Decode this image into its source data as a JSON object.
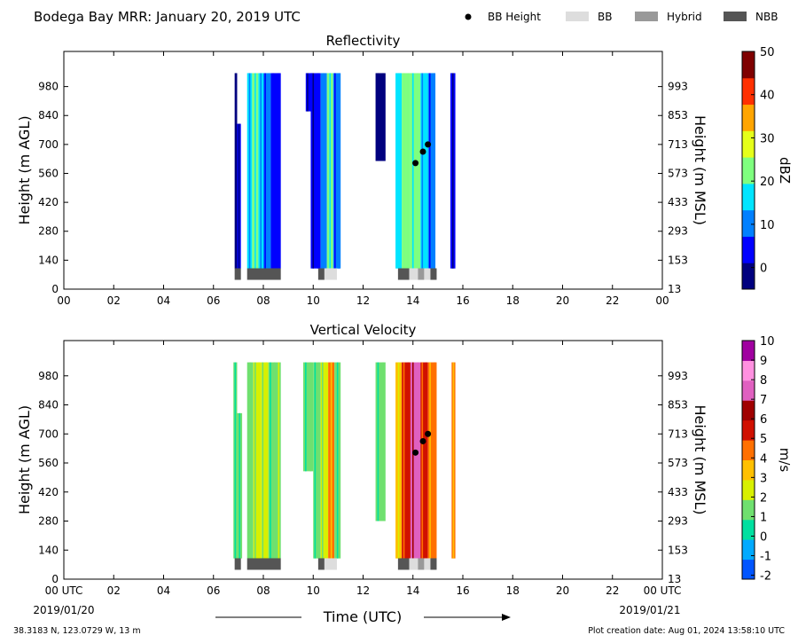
{
  "header": {
    "title": "Bodega Bay MRR:  January 20, 2019 UTC",
    "legend": [
      {
        "label": "BB Height",
        "kind": "dot",
        "color": "#000000"
      },
      {
        "label": "BB",
        "kind": "box",
        "color": "#dddddd"
      },
      {
        "label": "Hybrid",
        "kind": "box",
        "color": "#999999"
      },
      {
        "label": "NBB",
        "kind": "box",
        "color": "#555555"
      }
    ]
  },
  "footer": {
    "xlabel": "Time (UTC)",
    "start_date": "2019/01/20",
    "end_date": "2019/01/21",
    "location": "38.3183 N, 123.0729 W, 13 m",
    "created": "Plot creation date: Aug 01, 2024 13:58:10 UTC"
  },
  "chart_data": [
    {
      "type": "heatmap",
      "title": "Reflectivity",
      "ylabel": "Height (m AGL)",
      "y2label": "Height (m MSL)",
      "xlim": [
        0,
        24
      ],
      "ylim": [
        0,
        1150
      ],
      "x_ticks": [
        "00",
        "02",
        "04",
        "06",
        "08",
        "10",
        "12",
        "14",
        "16",
        "18",
        "20",
        "22",
        "00"
      ],
      "y_ticks": [
        0,
        140,
        280,
        420,
        560,
        700,
        840,
        980
      ],
      "y2_ticks": [
        13,
        153,
        293,
        433,
        573,
        713,
        853,
        993
      ],
      "colorbar": {
        "label": "dBZ",
        "range": [
          -5,
          50
        ],
        "ticks": [
          0,
          10,
          20,
          30,
          40,
          50
        ],
        "colors": [
          "#00007f",
          "#0000ff",
          "#0080ff",
          "#00e5ff",
          "#7fff7f",
          "#e5ff1a",
          "#ffa500",
          "#ff3000",
          "#7f0000"
        ]
      },
      "data_columns": [
        {
          "x": [
            6.85,
            6.95
          ],
          "ymin": 100,
          "ymax": 1045,
          "level": 0.08
        },
        {
          "x": [
            6.95,
            7.1
          ],
          "ymin": 100,
          "ymax": 800,
          "level": 0.18
        },
        {
          "x": [
            7.35,
            7.55
          ],
          "ymin": 100,
          "ymax": 1045,
          "level": 0.35
        },
        {
          "x": [
            7.55,
            7.8
          ],
          "ymin": 100,
          "ymax": 1045,
          "level": 0.5
        },
        {
          "x": [
            7.8,
            8.0
          ],
          "ymin": 100,
          "ymax": 1045,
          "level": 0.4
        },
        {
          "x": [
            8.0,
            8.3
          ],
          "ymin": 100,
          "ymax": 1045,
          "level": 0.3
        },
        {
          "x": [
            8.3,
            8.7
          ],
          "ymin": 100,
          "ymax": 1045,
          "level": 0.22
        },
        {
          "x": [
            9.7,
            10.0
          ],
          "ymin": 860,
          "ymax": 1045,
          "level": 0.12
        },
        {
          "x": [
            9.9,
            10.3
          ],
          "ymin": 100,
          "ymax": 1045,
          "level": 0.18
        },
        {
          "x": [
            10.3,
            10.55
          ],
          "ymin": 100,
          "ymax": 1045,
          "level": 0.32
        },
        {
          "x": [
            10.55,
            10.8
          ],
          "ymin": 100,
          "ymax": 1045,
          "level": 0.45
        },
        {
          "x": [
            10.8,
            11.1
          ],
          "ymin": 100,
          "ymax": 1045,
          "level": 0.25
        },
        {
          "x": [
            12.5,
            12.9
          ],
          "ymin": 620,
          "ymax": 1045,
          "level": 0.1
        },
        {
          "x": [
            13.3,
            13.55
          ],
          "ymin": 100,
          "ymax": 1045,
          "level": 0.42
        },
        {
          "x": [
            13.55,
            13.9
          ],
          "ymin": 100,
          "ymax": 1045,
          "level": 0.55
        },
        {
          "x": [
            13.9,
            14.3
          ],
          "ymin": 100,
          "ymax": 1045,
          "level": 0.5
        },
        {
          "x": [
            14.3,
            14.6
          ],
          "ymin": 100,
          "ymax": 1045,
          "level": 0.38
        },
        {
          "x": [
            14.6,
            14.9
          ],
          "ymin": 100,
          "ymax": 1045,
          "level": 0.3
        },
        {
          "x": [
            15.5,
            15.7
          ],
          "ymin": 100,
          "ymax": 1045,
          "level": 0.15
        }
      ],
      "bb_height": [
        {
          "x": 14.1,
          "y": 610
        },
        {
          "x": 14.4,
          "y": 665
        },
        {
          "x": 14.6,
          "y": 700
        }
      ],
      "bb_type": [
        {
          "x": [
            6.85,
            7.1
          ],
          "type": "NBB"
        },
        {
          "x": [
            7.35,
            8.7
          ],
          "type": "NBB"
        },
        {
          "x": [
            10.2,
            10.45
          ],
          "type": "NBB"
        },
        {
          "x": [
            10.45,
            10.95
          ],
          "type": "BB"
        },
        {
          "x": [
            13.4,
            13.85
          ],
          "type": "NBB"
        },
        {
          "x": [
            13.85,
            14.2
          ],
          "type": "BB"
        },
        {
          "x": [
            14.2,
            14.45
          ],
          "type": "Hybrid"
        },
        {
          "x": [
            14.45,
            14.7
          ],
          "type": "BB"
        },
        {
          "x": [
            14.7,
            14.95
          ],
          "type": "NBB"
        }
      ]
    },
    {
      "type": "heatmap",
      "title": "Vertical Velocity",
      "ylabel": "Height (m AGL)",
      "y2label": "Height (m MSL)",
      "xlim": [
        0,
        24
      ],
      "ylim": [
        0,
        1150
      ],
      "x_ticks": [
        "00 UTC",
        "02",
        "04",
        "06",
        "08",
        "10",
        "12",
        "14",
        "16",
        "18",
        "20",
        "22",
        "00 UTC"
      ],
      "y_ticks": [
        0,
        140,
        280,
        420,
        560,
        700,
        840,
        980
      ],
      "y2_ticks": [
        13,
        153,
        293,
        433,
        573,
        713,
        853,
        993
      ],
      "colorbar": {
        "label": "m/s",
        "range": [
          -2.2,
          10
        ],
        "ticks": [
          -2,
          -1,
          0,
          1,
          2,
          3,
          4,
          5,
          6,
          7,
          8,
          9,
          10
        ],
        "colors": [
          "#0055ff",
          "#00aaff",
          "#00e0a0",
          "#6fe06f",
          "#d8f000",
          "#ffc000",
          "#ff7000",
          "#d01000",
          "#a00000",
          "#e060c0",
          "#ff90e0",
          "#a000a0"
        ]
      },
      "data_columns": [
        {
          "x": [
            6.8,
            6.95
          ],
          "ymin": 100,
          "ymax": 1045,
          "level": 0.3
        },
        {
          "x": [
            6.95,
            7.15
          ],
          "ymin": 100,
          "ymax": 800,
          "level": 0.25
        },
        {
          "x": [
            7.35,
            7.6
          ],
          "ymin": 100,
          "ymax": 1045,
          "level": 0.33
        },
        {
          "x": [
            7.6,
            7.9
          ],
          "ymin": 100,
          "ymax": 1045,
          "level": 0.4
        },
        {
          "x": [
            7.9,
            8.2
          ],
          "ymin": 100,
          "ymax": 1045,
          "level": 0.36
        },
        {
          "x": [
            8.2,
            8.7
          ],
          "ymin": 100,
          "ymax": 1045,
          "level": 0.28
        },
        {
          "x": [
            9.6,
            10.0
          ],
          "ymin": 520,
          "ymax": 1045,
          "level": 0.25
        },
        {
          "x": [
            10.0,
            10.3
          ],
          "ymin": 100,
          "ymax": 1045,
          "level": 0.3
        },
        {
          "x": [
            10.3,
            10.6
          ],
          "ymin": 100,
          "ymax": 1045,
          "level": 0.35
        },
        {
          "x": [
            10.6,
            10.85
          ],
          "ymin": 100,
          "ymax": 1045,
          "level": 0.55
        },
        {
          "x": [
            10.85,
            11.1
          ],
          "ymin": 100,
          "ymax": 1045,
          "level": 0.3
        },
        {
          "x": [
            12.5,
            12.9
          ],
          "ymin": 280,
          "ymax": 1045,
          "level": 0.26
        },
        {
          "x": [
            13.3,
            13.55
          ],
          "ymin": 100,
          "ymax": 1045,
          "level": 0.42
        },
        {
          "x": [
            13.55,
            13.9
          ],
          "ymin": 100,
          "ymax": 1045,
          "level": 0.65
        },
        {
          "x": [
            13.9,
            14.3
          ],
          "ymin": 100,
          "ymax": 1045,
          "level": 0.75
        },
        {
          "x": [
            14.3,
            14.6
          ],
          "ymin": 100,
          "ymax": 1045,
          "level": 0.62
        },
        {
          "x": [
            14.6,
            14.95
          ],
          "ymin": 100,
          "ymax": 1045,
          "level": 0.58
        },
        {
          "x": [
            15.55,
            15.7
          ],
          "ymin": 100,
          "ymax": 1045,
          "level": 0.55
        }
      ],
      "bb_height": [
        {
          "x": 14.1,
          "y": 610
        },
        {
          "x": 14.4,
          "y": 665
        },
        {
          "x": 14.6,
          "y": 700
        }
      ],
      "bb_type": [
        {
          "x": [
            6.85,
            7.1
          ],
          "type": "NBB"
        },
        {
          "x": [
            7.35,
            8.7
          ],
          "type": "NBB"
        },
        {
          "x": [
            10.2,
            10.45
          ],
          "type": "NBB"
        },
        {
          "x": [
            10.45,
            10.95
          ],
          "type": "BB"
        },
        {
          "x": [
            13.4,
            13.85
          ],
          "type": "NBB"
        },
        {
          "x": [
            13.85,
            14.2
          ],
          "type": "BB"
        },
        {
          "x": [
            14.2,
            14.45
          ],
          "type": "Hybrid"
        },
        {
          "x": [
            14.45,
            14.7
          ],
          "type": "BB"
        },
        {
          "x": [
            14.7,
            14.95
          ],
          "type": "NBB"
        }
      ]
    }
  ]
}
